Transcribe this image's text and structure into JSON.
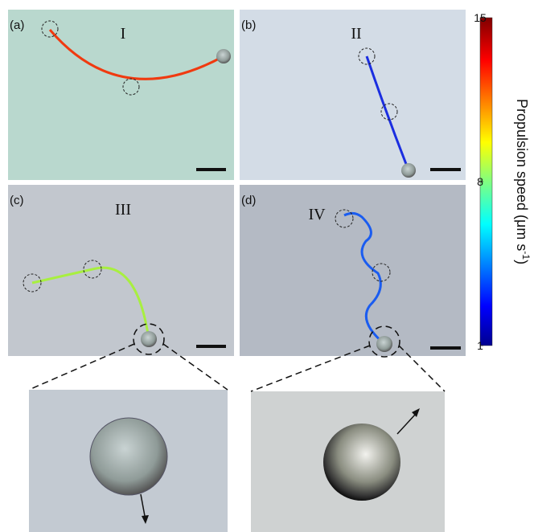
{
  "panels": [
    {
      "label": "(a)",
      "roman": "I"
    },
    {
      "label": "(b)",
      "roman": "II"
    },
    {
      "label": "(c)",
      "roman": "III"
    },
    {
      "label": "(d)",
      "roman": "IV"
    }
  ],
  "colorbar": {
    "title": "Propulsion speed (μm s",
    "title_sup": "-1",
    "title_end": ")",
    "lim": [
      1,
      15
    ],
    "ticks": [
      1,
      8,
      15
    ]
  }
}
